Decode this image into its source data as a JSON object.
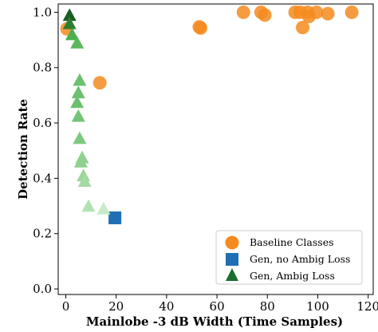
{
  "chart_data": {
    "type": "scatter",
    "title": "",
    "xlabel": "Mainlobe -3 dB Width (Time Samples)",
    "ylabel": "Detection Rate",
    "xlim": [
      -3,
      122
    ],
    "ylim": [
      -0.02,
      1.03
    ],
    "xticks": [
      0,
      20,
      40,
      60,
      80,
      100,
      120
    ],
    "yticks": [
      0.0,
      0.2,
      0.4,
      0.6,
      0.8,
      1.0
    ],
    "grid": false,
    "legend_position": "lower-right",
    "series": [
      {
        "name": "Baseline Classes",
        "marker": "circle",
        "color": "#f58b1f",
        "points": [
          [
            0.5,
            0.94
          ],
          [
            13.5,
            0.745
          ],
          [
            53,
            0.947
          ],
          [
            53.5,
            0.943
          ],
          [
            70.5,
            1.0
          ],
          [
            77.5,
            1.0
          ],
          [
            79,
            0.99
          ],
          [
            91,
            1.0
          ],
          [
            93,
            1.0
          ],
          [
            94,
            0.945
          ],
          [
            96,
            1.0
          ],
          [
            96.5,
            0.985
          ],
          [
            99.5,
            1.0
          ],
          [
            104,
            0.995
          ],
          [
            113.5,
            1.0
          ]
        ]
      },
      {
        "name": "Gen, no Ambig Loss",
        "marker": "square",
        "color": "#1f6fb5",
        "points": [
          [
            19.5,
            0.257
          ]
        ]
      },
      {
        "name": "Gen, Ambig Loss",
        "marker": "triangle",
        "color": "#1b6e2f",
        "points": [
          {
            "x": 1.5,
            "y": 0.99,
            "color": "#1b5e20"
          },
          {
            "x": 1.5,
            "y": 0.96,
            "color": "#2e7d32"
          },
          {
            "x": 2.5,
            "y": 0.92,
            "color": "#4caf50"
          },
          {
            "x": 4.5,
            "y": 0.89,
            "color": "#5cb85c"
          },
          {
            "x": 5.5,
            "y": 0.755,
            "color": "#6cc070"
          },
          {
            "x": 5.0,
            "y": 0.71,
            "color": "#6cc070"
          },
          {
            "x": 4.5,
            "y": 0.675,
            "color": "#6cc070"
          },
          {
            "x": 5.0,
            "y": 0.625,
            "color": "#72c476"
          },
          {
            "x": 5.5,
            "y": 0.545,
            "color": "#7dc97f"
          },
          {
            "x": 6.5,
            "y": 0.475,
            "color": "#8fd18e"
          },
          {
            "x": 6.0,
            "y": 0.46,
            "color": "#8fd18e"
          },
          {
            "x": 7.0,
            "y": 0.41,
            "color": "#9ad89a"
          },
          {
            "x": 7.5,
            "y": 0.39,
            "color": "#a4dba3"
          },
          {
            "x": 9.0,
            "y": 0.3,
            "color": "#b3e2b1"
          },
          {
            "x": 15.0,
            "y": 0.29,
            "color": "#c8ebc6"
          }
        ]
      }
    ]
  }
}
